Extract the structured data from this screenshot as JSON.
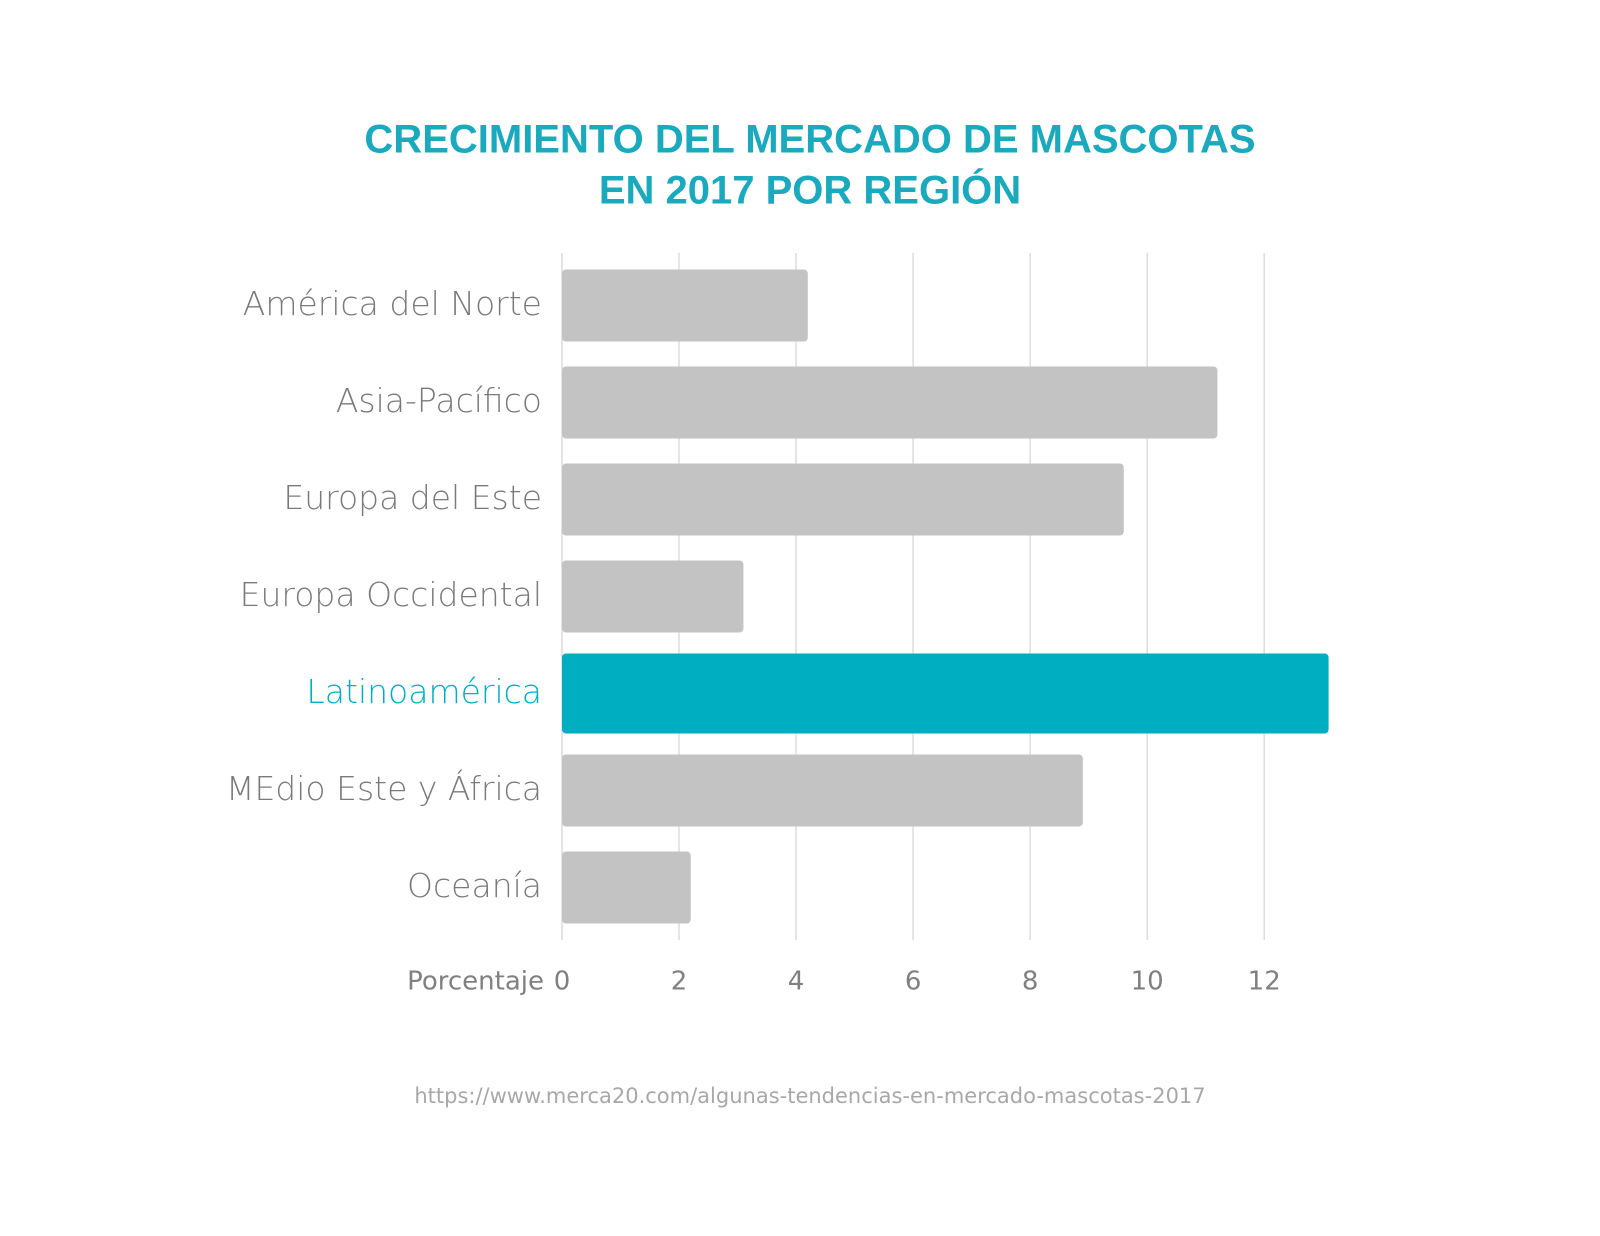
{
  "chart_data": {
    "type": "bar",
    "orientation": "horizontal",
    "title": [
      "CRECIMIENTO DEL MERCADO DE MASCOTAS",
      "EN 2017 POR REGIÓN"
    ],
    "categories": [
      "América del Norte",
      "Asia-Pacífico",
      "Europa del Este",
      "Europa Occidental",
      "Latinoamérica",
      "MEdio Este y África",
      "Oceanía"
    ],
    "values": [
      4.2,
      11.2,
      9.6,
      3.1,
      13.1,
      8.9,
      2.2
    ],
    "color": "#c4c3c4",
    "highlight": {
      "category": "Latinoamérica",
      "color": "#00aec2"
    },
    "xlabel": "Porcentaje",
    "xlim": [
      0,
      13.5
    ],
    "xticks": [
      0,
      2,
      4,
      6,
      8,
      10,
      12
    ],
    "grid": true,
    "source": "https://www.merca20.com/algunas-tendencias-en-mercado-mascotas-2017"
  }
}
